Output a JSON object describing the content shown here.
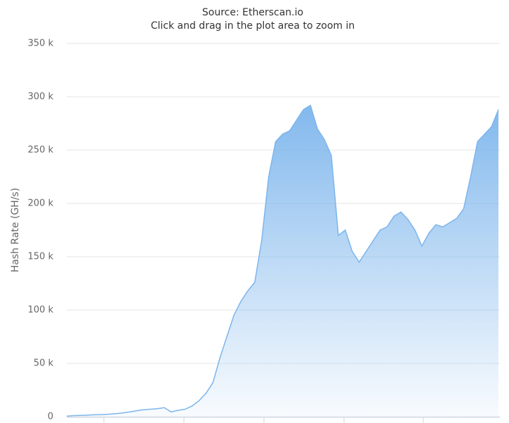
{
  "chart_data": {
    "type": "area",
    "subtitle": [
      "Source: Etherscan.io",
      "Click and drag in the plot area to zoom in"
    ],
    "y_label": "Hash Rate (GH/s)",
    "color": "#7cb5ec",
    "ylim": [
      0,
      350000
    ],
    "yticks": [
      0,
      {
        "value": 50000,
        "label": "50 k"
      },
      {
        "value": 100000,
        "label": "100 k"
      },
      {
        "value": 150000,
        "label": "150 k"
      },
      {
        "value": 200000,
        "label": "200 k"
      },
      {
        "value": 250000,
        "label": "250 k"
      },
      {
        "value": 300000,
        "label": "300 k"
      },
      {
        "value": 350000,
        "label": "350 k"
      }
    ],
    "grid": true,
    "values": [
      500,
      1000,
      1200,
      1500,
      1800,
      2000,
      2300,
      2800,
      3500,
      4500,
      5500,
      6500,
      7000,
      7500,
      8500,
      4500,
      6000,
      7000,
      10000,
      15000,
      22000,
      32000,
      55000,
      75000,
      95000,
      108000,
      118000,
      126000,
      165000,
      225000,
      258000,
      265000,
      268000,
      278000,
      288000,
      292000,
      270000,
      260000,
      245000,
      170000,
      175000,
      155000,
      145000,
      155000,
      165000,
      175000,
      178000,
      188000,
      192000,
      185000,
      175000,
      160000,
      172000,
      180000,
      178000,
      182000,
      186000,
      195000,
      225000,
      258000,
      265000,
      272000,
      288000
    ]
  }
}
